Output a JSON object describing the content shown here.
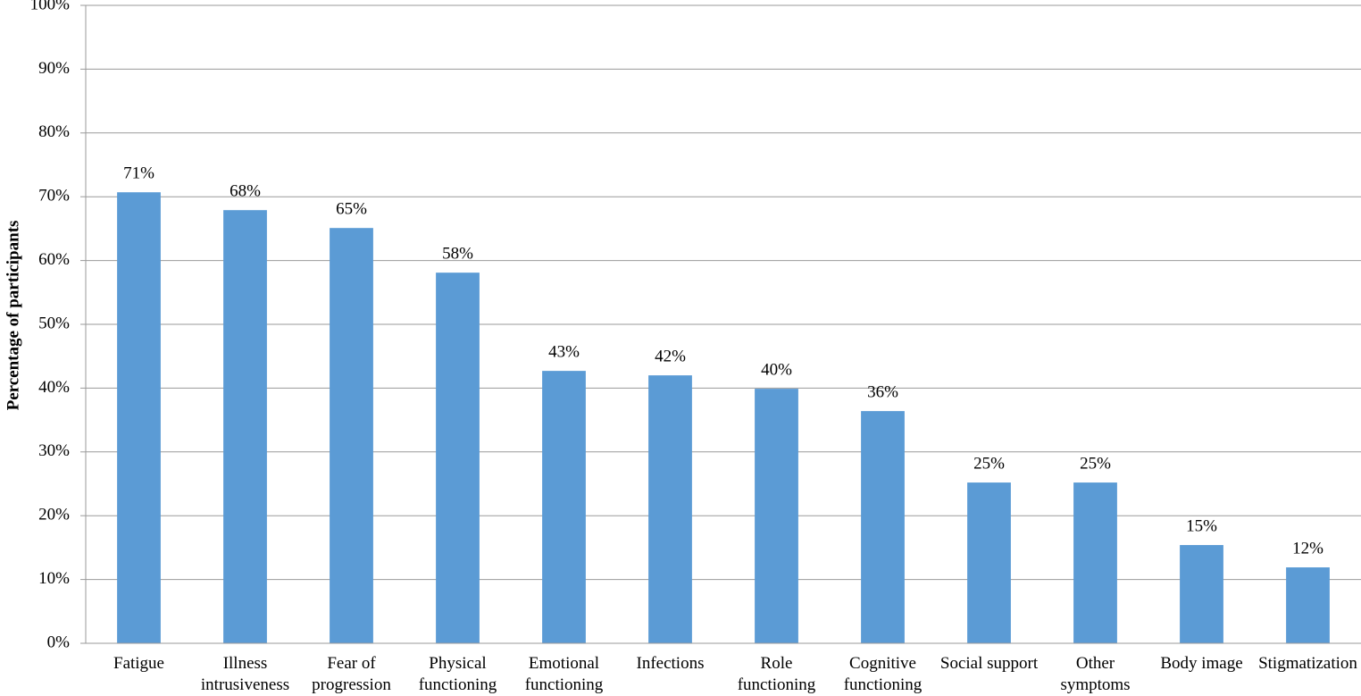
{
  "chart_data": {
    "type": "bar",
    "y_label": "Percentage of participants",
    "categories": [
      "Fatigue",
      "Illness\nintrusiveness",
      "Fear of\nprogression",
      "Physical\nfunctioning",
      "Emotional\nfunctioning",
      "Infections",
      "Role\nfunctioning",
      "Cognitive\nfunctioning",
      "Social support",
      "Other\nsymptoms",
      "Body image",
      "Stigmatization"
    ],
    "values": [
      70.7,
      67.9,
      65.1,
      58.1,
      42.7,
      42.0,
      39.9,
      36.4,
      25.2,
      25.2,
      15.4,
      11.9
    ],
    "value_labels": [
      "71%",
      "68%",
      "65%",
      "58%",
      "43%",
      "42%",
      "40%",
      "36%",
      "25%",
      "25%",
      "15%",
      "12%"
    ],
    "color": "#5b9bd5",
    "ylim": [
      0,
      100
    ],
    "yticks": [
      {
        "value": 0,
        "label": "0%"
      },
      {
        "value": 10,
        "label": "10%"
      },
      {
        "value": 20,
        "label": "20%"
      },
      {
        "value": 30,
        "label": "30%"
      },
      {
        "value": 40,
        "label": "40%"
      },
      {
        "value": 50,
        "label": "50%"
      },
      {
        "value": 60,
        "label": "60%"
      },
      {
        "value": 70,
        "label": "70%"
      },
      {
        "value": 80,
        "label": "80%"
      },
      {
        "value": 90,
        "label": "90%"
      },
      {
        "value": 100,
        "label": "100%"
      }
    ],
    "grid": true
  }
}
